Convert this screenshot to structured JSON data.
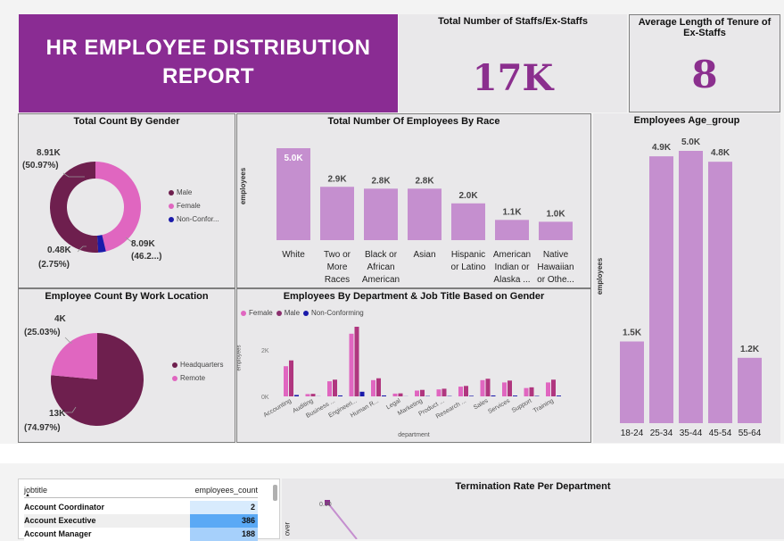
{
  "header": {
    "title_line1": "HR EMPLOYEE DISTRIBUTION",
    "title_line2": "REPORT"
  },
  "kpis": {
    "total_staff": {
      "title": "Total Number of Staffs/Ex-Staffs",
      "value": "17K"
    },
    "avg_tenure": {
      "title": "Average Length of Tenure of Ex-Staffs",
      "value": "8"
    }
  },
  "colors": {
    "accent_purple": "#8b2f8e",
    "male": "#6e1f4e",
    "female": "#e066c0",
    "nonconf": "#1a1aaa",
    "bar": "#c58fcf"
  },
  "gender_chart": {
    "title": "Total Count By Gender",
    "labels": {
      "male_value": "8.91K",
      "male_pct": "(50.97%)",
      "female_value": "8.09K",
      "female_pct": "(46.2...)",
      "nonconf_value": "0.48K",
      "nonconf_pct": "(2.75%)"
    },
    "legend": [
      "Male",
      "Female",
      "Non-Confor..."
    ]
  },
  "location_chart": {
    "title": "Employee Count By Work Location",
    "labels": {
      "remote_value": "4K",
      "remote_pct": "(25.03%)",
      "hq_value": "13K",
      "hq_pct": "(74.97%)"
    },
    "legend": [
      "Headquarters",
      "Remote"
    ]
  },
  "race_chart": {
    "title": "Total Number Of Employees By Race",
    "ylabel": "employees",
    "categories": [
      [
        "White"
      ],
      [
        "Two or",
        "More",
        "Races"
      ],
      [
        "Black or",
        "African",
        "American"
      ],
      [
        "Asian"
      ],
      [
        "Hispanic",
        "or Latino"
      ],
      [
        "American",
        "Indian or",
        "Alaska ..."
      ],
      [
        "Native",
        "Hawaiian",
        "or Othe..."
      ]
    ],
    "value_labels": [
      "5.0K",
      "2.9K",
      "2.8K",
      "2.8K",
      "2.0K",
      "1.1K",
      "1.0K"
    ]
  },
  "age_chart": {
    "title": "Employees Age_group",
    "ylabel": "employees",
    "categories": [
      "18-24",
      "25-34",
      "35-44",
      "45-54",
      "55-64"
    ],
    "value_labels": [
      "1.5K",
      "4.9K",
      "5.0K",
      "4.8K",
      "1.2K"
    ]
  },
  "dept_chart": {
    "title": "Employees By Department & Job Title Based on Gender",
    "legend": [
      "Female",
      "Male",
      "Non-Conforming"
    ],
    "ylabel": "employees",
    "xlabel": "department",
    "ytick_labels": [
      "2K",
      "0K"
    ],
    "categories": [
      "Accounting",
      "Auditing",
      "Business ...",
      "Engineeri...",
      "Human R...",
      "Legal",
      "Marketing",
      "Product ...",
      "Research ...",
      "Sales",
      "Services",
      "Support",
      "Training"
    ]
  },
  "job_table": {
    "columns": [
      "jobtitle",
      "employees_count"
    ],
    "rows": [
      {
        "title": "Account Coordinator",
        "count": "2"
      },
      {
        "title": "Account Executive",
        "count": "386"
      },
      {
        "title": "Account Manager",
        "count": "188"
      }
    ]
  },
  "termination_chart": {
    "title": "Termination Rate Per Department",
    "ylabel_partial": "over",
    "point_label": "0.00"
  },
  "chart_data": [
    {
      "type": "pie",
      "title": "Total Count By Gender",
      "categories": [
        "Male",
        "Female",
        "Non-Conforming"
      ],
      "values": [
        8910,
        8090,
        480
      ],
      "percent": [
        50.97,
        46.28,
        2.75
      ]
    },
    {
      "type": "pie",
      "title": "Employee Count By Work Location",
      "categories": [
        "Headquarters",
        "Remote"
      ],
      "values": [
        13000,
        4000
      ],
      "percent": [
        74.97,
        25.03
      ]
    },
    {
      "type": "bar",
      "title": "Total Number Of Employees By Race",
      "ylabel": "employees",
      "categories": [
        "White",
        "Two or More Races",
        "Black or African American",
        "Asian",
        "Hispanic or Latino",
        "American Indian or Alaska ...",
        "Native Hawaiian or Othe..."
      ],
      "values": [
        5000,
        2900,
        2800,
        2800,
        2000,
        1100,
        1000
      ],
      "ylim": [
        0,
        5500
      ]
    },
    {
      "type": "bar",
      "title": "Employees Age_group",
      "ylabel": "employees",
      "categories": [
        "18-24",
        "25-34",
        "35-44",
        "45-54",
        "55-64"
      ],
      "values": [
        1500,
        4900,
        5000,
        4800,
        1200
      ],
      "ylim": [
        0,
        5500
      ]
    },
    {
      "type": "bar",
      "title": "Employees By Department & Job Title Based on Gender",
      "xlabel": "department",
      "ylabel": "employees",
      "categories": [
        "Accounting",
        "Auditing",
        "Business ...",
        "Engineeri...",
        "Human R...",
        "Legal",
        "Marketing",
        "Product ...",
        "Research ...",
        "Sales",
        "Services",
        "Support",
        "Training"
      ],
      "series": [
        {
          "name": "Female",
          "values": [
            1300,
            100,
            650,
            2700,
            700,
            120,
            250,
            300,
            420,
            700,
            600,
            360,
            600
          ]
        },
        {
          "name": "Male",
          "values": [
            1550,
            110,
            720,
            3000,
            780,
            130,
            280,
            330,
            450,
            760,
            680,
            390,
            720
          ]
        },
        {
          "name": "Non-Conforming",
          "values": [
            60,
            5,
            40,
            200,
            40,
            5,
            15,
            15,
            25,
            40,
            35,
            20,
            35
          ]
        }
      ],
      "ylim": [
        0,
        3200
      ]
    },
    {
      "type": "line",
      "title": "Termination Rate Per Department",
      "ylabel": "over",
      "series": [
        {
          "values": [
            0.0
          ]
        }
      ]
    }
  ]
}
